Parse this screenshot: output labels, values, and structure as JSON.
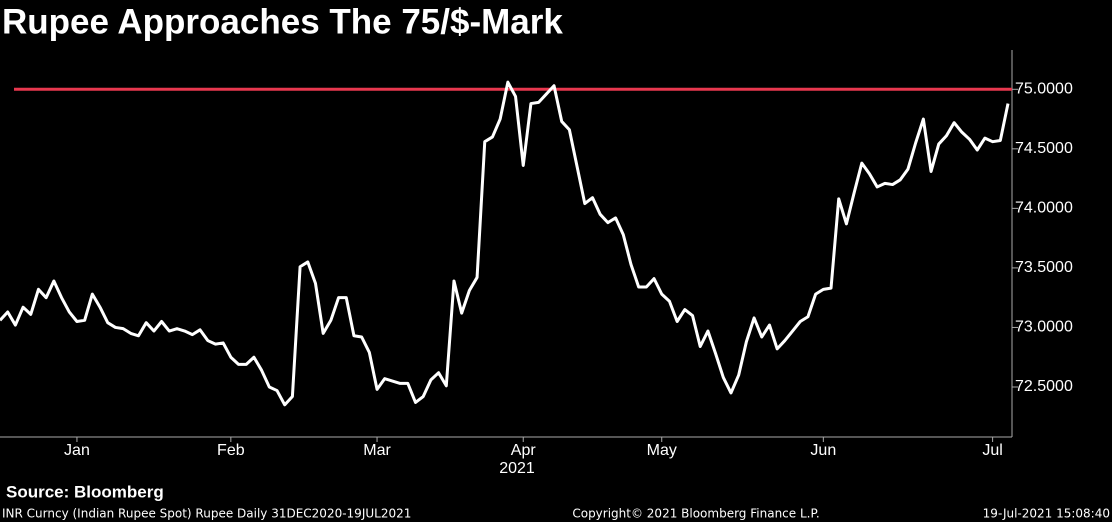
{
  "chart_data": {
    "type": "line",
    "title": "Rupee Approaches The 75/$-Mark",
    "source": "Source: Bloomberg",
    "footer_left": "INR Curncy (Indian Rupee Spot) Rupee  Daily 31DEC2020-19JUL2021",
    "footer_center": "Copyright© 2021 Bloomberg Finance L.P.",
    "footer_right": "19-Jul-2021 15:08:40",
    "xlabel": "2021",
    "categories": [
      null,
      null,
      null,
      null,
      null,
      null,
      null,
      null,
      null,
      null,
      "Jan",
      null,
      null,
      null,
      null,
      null,
      null,
      null,
      null,
      null,
      null,
      null,
      null,
      null,
      null,
      null,
      null,
      null,
      null,
      null,
      "Feb",
      null,
      null,
      null,
      null,
      null,
      null,
      null,
      null,
      null,
      null,
      null,
      null,
      null,
      null,
      null,
      null,
      null,
      null,
      "Mar",
      null,
      null,
      null,
      null,
      null,
      null,
      null,
      null,
      null,
      null,
      null,
      null,
      null,
      null,
      null,
      null,
      null,
      null,
      "Apr",
      null,
      null,
      null,
      null,
      null,
      null,
      null,
      null,
      null,
      null,
      null,
      null,
      null,
      null,
      null,
      null,
      null,
      "May",
      null,
      null,
      null,
      null,
      null,
      null,
      null,
      null,
      null,
      null,
      null,
      null,
      null,
      null,
      null,
      null,
      null,
      null,
      null,
      null,
      "Jun",
      null,
      null,
      null,
      null,
      null,
      null,
      null,
      null,
      null,
      null,
      null,
      null,
      null,
      null,
      null,
      null,
      null,
      null,
      null,
      null,
      null,
      "Jul",
      null,
      null
    ],
    "values": [
      73.06,
      73.13,
      73.02,
      73.17,
      73.11,
      73.32,
      73.25,
      73.39,
      73.25,
      73.13,
      73.05,
      73.06,
      73.28,
      73.17,
      73.04,
      73.0,
      72.99,
      72.95,
      72.93,
      73.04,
      72.97,
      73.05,
      72.97,
      72.99,
      72.97,
      72.94,
      72.98,
      72.89,
      72.86,
      72.87,
      72.75,
      72.69,
      72.69,
      72.75,
      72.64,
      72.5,
      72.47,
      72.35,
      72.42,
      73.51,
      73.55,
      73.37,
      72.95,
      73.06,
      73.25,
      73.25,
      72.93,
      72.92,
      72.79,
      72.48,
      72.57,
      72.55,
      72.53,
      72.53,
      72.37,
      72.42,
      72.56,
      72.62,
      72.51,
      73.39,
      73.12,
      73.31,
      73.42,
      74.56,
      74.6,
      74.75,
      75.06,
      74.94,
      74.36,
      74.88,
      74.89,
      74.96,
      75.03,
      74.73,
      74.66,
      74.35,
      74.04,
      74.09,
      73.95,
      73.88,
      73.92,
      73.78,
      73.53,
      73.34,
      73.34,
      73.41,
      73.28,
      73.22,
      73.05,
      73.15,
      73.1,
      72.84,
      72.97,
      72.78,
      72.58,
      72.45,
      72.6,
      72.88,
      73.08,
      72.92,
      73.02,
      72.82,
      72.89,
      72.97,
      73.05,
      73.09,
      73.28,
      73.32,
      73.33,
      74.08,
      73.87,
      74.13,
      74.38,
      74.29,
      74.18,
      74.21,
      74.2,
      74.24,
      74.33,
      74.55,
      74.75,
      74.31,
      74.54,
      74.61,
      74.72,
      74.64,
      74.58,
      74.49,
      74.59,
      74.56,
      74.57,
      74.88
    ],
    "color": "#ffffff",
    "hline": {
      "value": 75,
      "color": "#e8384f"
    },
    "ylim": [
      72.08,
      75.33
    ],
    "yticks": [
      {
        "value": 72.5,
        "label": "72.5000"
      },
      {
        "value": 73,
        "label": "73.0000"
      },
      {
        "value": 73.5,
        "label": "73.5000"
      },
      {
        "value": 74,
        "label": "74.0000"
      },
      {
        "value": 74.5,
        "label": "74.5000"
      },
      {
        "value": 75,
        "label": "75.0000"
      }
    ],
    "grid": false
  }
}
